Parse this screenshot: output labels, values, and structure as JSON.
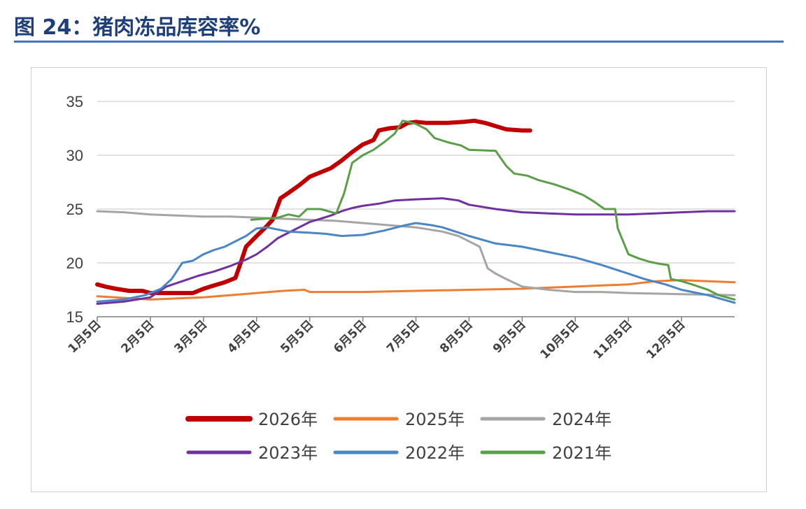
{
  "figure": {
    "title": "图 24：猪肉冻品库容率%"
  },
  "colors": {
    "title": "#1f3f7a",
    "rule": "#4472c4",
    "grid": "#d9d9d9",
    "axis": "#7f7f7f",
    "text": "#404040"
  },
  "chart_data": {
    "type": "line",
    "title": "",
    "xlabel": "",
    "ylabel": "",
    "ylim": [
      15,
      35
    ],
    "yticks": [
      15,
      20,
      25,
      30,
      35
    ],
    "xlim": [
      0,
      12
    ],
    "xticks": [
      {
        "x": 0,
        "label": "1月5日"
      },
      {
        "x": 1,
        "label": "2月5日"
      },
      {
        "x": 2,
        "label": "3月5日"
      },
      {
        "x": 3,
        "label": "4月5日"
      },
      {
        "x": 4,
        "label": "5月5日"
      },
      {
        "x": 5,
        "label": "6月5日"
      },
      {
        "x": 6,
        "label": "7月5日"
      },
      {
        "x": 7,
        "label": "8月5日"
      },
      {
        "x": 8,
        "label": "9月5日"
      },
      {
        "x": 9,
        "label": "10月5日"
      },
      {
        "x": 10,
        "label": "11月5日"
      },
      {
        "x": 11,
        "label": "12月5日"
      }
    ],
    "grid": true,
    "legend": "bottom",
    "series": [
      {
        "name": "2026年",
        "color": "#c00000",
        "width": 6,
        "points": [
          [
            0,
            18.0
          ],
          [
            0.15,
            17.8
          ],
          [
            0.35,
            17.6
          ],
          [
            0.6,
            17.4
          ],
          [
            0.85,
            17.4
          ],
          [
            1.0,
            17.2
          ],
          [
            1.5,
            17.2
          ],
          [
            1.8,
            17.2
          ],
          [
            2.0,
            17.6
          ],
          [
            2.2,
            17.9
          ],
          [
            2.4,
            18.2
          ],
          [
            2.6,
            18.6
          ],
          [
            2.7,
            20.0
          ],
          [
            2.8,
            21.5
          ],
          [
            3.0,
            22.5
          ],
          [
            3.15,
            23.2
          ],
          [
            3.3,
            24.0
          ],
          [
            3.45,
            26.0
          ],
          [
            3.6,
            26.5
          ],
          [
            3.8,
            27.2
          ],
          [
            4.0,
            28.0
          ],
          [
            4.2,
            28.4
          ],
          [
            4.4,
            28.8
          ],
          [
            4.6,
            29.5
          ],
          [
            4.8,
            30.3
          ],
          [
            5.0,
            31.0
          ],
          [
            5.2,
            31.4
          ],
          [
            5.3,
            32.3
          ],
          [
            5.5,
            32.5
          ],
          [
            5.7,
            32.6
          ],
          [
            5.85,
            33.0
          ],
          [
            6.0,
            33.1
          ],
          [
            6.2,
            33.0
          ],
          [
            6.6,
            33.0
          ],
          [
            6.9,
            33.1
          ],
          [
            7.1,
            33.2
          ],
          [
            7.3,
            33.0
          ],
          [
            7.5,
            32.7
          ],
          [
            7.7,
            32.4
          ],
          [
            8.0,
            32.3
          ],
          [
            8.15,
            32.3
          ]
        ]
      },
      {
        "name": "2025年",
        "color": "#ed7d31",
        "width": 3,
        "points": [
          [
            0,
            16.9
          ],
          [
            1.0,
            16.6
          ],
          [
            2.0,
            16.8
          ],
          [
            2.5,
            17.0
          ],
          [
            3.0,
            17.2
          ],
          [
            3.5,
            17.4
          ],
          [
            3.9,
            17.5
          ],
          [
            4.0,
            17.3
          ],
          [
            5.0,
            17.3
          ],
          [
            6.0,
            17.4
          ],
          [
            7.0,
            17.5
          ],
          [
            8.0,
            17.6
          ],
          [
            8.5,
            17.7
          ],
          [
            9.0,
            17.8
          ],
          [
            9.5,
            17.9
          ],
          [
            10.0,
            18.0
          ],
          [
            10.5,
            18.3
          ],
          [
            11.0,
            18.4
          ],
          [
            11.5,
            18.3
          ],
          [
            12.0,
            18.2
          ]
        ]
      },
      {
        "name": "2024年",
        "color": "#a5a5a5",
        "width": 3,
        "points": [
          [
            0,
            24.8
          ],
          [
            0.5,
            24.7
          ],
          [
            1.0,
            24.5
          ],
          [
            1.5,
            24.4
          ],
          [
            2.0,
            24.3
          ],
          [
            2.5,
            24.3
          ],
          [
            3.0,
            24.2
          ],
          [
            3.5,
            24.1
          ],
          [
            4.0,
            24.0
          ],
          [
            4.5,
            23.9
          ],
          [
            5.0,
            23.7
          ],
          [
            5.5,
            23.5
          ],
          [
            6.0,
            23.3
          ],
          [
            6.5,
            22.9
          ],
          [
            6.8,
            22.5
          ],
          [
            7.0,
            22.0
          ],
          [
            7.2,
            21.5
          ],
          [
            7.35,
            19.5
          ],
          [
            7.5,
            19.0
          ],
          [
            7.7,
            18.5
          ],
          [
            8.0,
            17.8
          ],
          [
            8.5,
            17.5
          ],
          [
            9.0,
            17.3
          ],
          [
            9.5,
            17.3
          ],
          [
            10.0,
            17.2
          ],
          [
            11.0,
            17.1
          ],
          [
            12.0,
            17.0
          ]
        ]
      },
      {
        "name": "2023年",
        "color": "#7030a0",
        "width": 3,
        "points": [
          [
            0,
            16.2
          ],
          [
            0.5,
            16.4
          ],
          [
            1.0,
            16.8
          ],
          [
            1.3,
            17.8
          ],
          [
            1.6,
            18.3
          ],
          [
            1.9,
            18.8
          ],
          [
            2.2,
            19.2
          ],
          [
            2.5,
            19.7
          ],
          [
            2.8,
            20.3
          ],
          [
            3.0,
            20.8
          ],
          [
            3.2,
            21.5
          ],
          [
            3.4,
            22.3
          ],
          [
            3.6,
            22.8
          ],
          [
            3.8,
            23.3
          ],
          [
            4.0,
            23.8
          ],
          [
            4.2,
            24.1
          ],
          [
            4.4,
            24.4
          ],
          [
            4.6,
            24.8
          ],
          [
            4.8,
            25.1
          ],
          [
            5.0,
            25.3
          ],
          [
            5.3,
            25.5
          ],
          [
            5.6,
            25.8
          ],
          [
            6.0,
            25.9
          ],
          [
            6.5,
            26.0
          ],
          [
            6.8,
            25.8
          ],
          [
            7.0,
            25.4
          ],
          [
            7.5,
            25.0
          ],
          [
            8.0,
            24.7
          ],
          [
            8.5,
            24.6
          ],
          [
            9.0,
            24.5
          ],
          [
            9.5,
            24.5
          ],
          [
            10.0,
            24.5
          ],
          [
            10.5,
            24.6
          ],
          [
            11.0,
            24.7
          ],
          [
            11.5,
            24.8
          ],
          [
            12.0,
            24.8
          ]
        ]
      },
      {
        "name": "2022年",
        "color": "#4a86c5",
        "width": 3,
        "points": [
          [
            0,
            16.4
          ],
          [
            0.5,
            16.6
          ],
          [
            0.9,
            17.0
          ],
          [
            1.2,
            17.6
          ],
          [
            1.4,
            18.5
          ],
          [
            1.6,
            20.0
          ],
          [
            1.8,
            20.2
          ],
          [
            2.0,
            20.8
          ],
          [
            2.2,
            21.2
          ],
          [
            2.4,
            21.5
          ],
          [
            2.6,
            22.0
          ],
          [
            2.8,
            22.5
          ],
          [
            3.0,
            23.2
          ],
          [
            3.2,
            23.3
          ],
          [
            3.4,
            23.1
          ],
          [
            3.6,
            22.9
          ],
          [
            4.0,
            22.8
          ],
          [
            4.3,
            22.7
          ],
          [
            4.6,
            22.5
          ],
          [
            5.0,
            22.6
          ],
          [
            5.4,
            23.0
          ],
          [
            5.8,
            23.5
          ],
          [
            6.0,
            23.7
          ],
          [
            6.3,
            23.5
          ],
          [
            6.5,
            23.3
          ],
          [
            7.0,
            22.5
          ],
          [
            7.5,
            21.8
          ],
          [
            8.0,
            21.5
          ],
          [
            8.5,
            21.0
          ],
          [
            9.0,
            20.5
          ],
          [
            9.5,
            19.8
          ],
          [
            10.0,
            19.0
          ],
          [
            10.3,
            18.5
          ],
          [
            10.7,
            18.0
          ],
          [
            11.0,
            17.5
          ],
          [
            11.5,
            17.0
          ],
          [
            12.0,
            16.3
          ]
        ]
      },
      {
        "name": "2021年",
        "color": "#5a9f47",
        "width": 3,
        "points": [
          [
            2.9,
            24.0
          ],
          [
            3.4,
            24.2
          ],
          [
            3.6,
            24.5
          ],
          [
            3.8,
            24.3
          ],
          [
            3.95,
            25.0
          ],
          [
            4.2,
            25.0
          ],
          [
            4.5,
            24.6
          ],
          [
            4.65,
            26.5
          ],
          [
            4.8,
            29.3
          ],
          [
            5.0,
            30.0
          ],
          [
            5.2,
            30.5
          ],
          [
            5.4,
            31.2
          ],
          [
            5.6,
            32.0
          ],
          [
            5.75,
            33.2
          ],
          [
            5.85,
            33.1
          ],
          [
            6.0,
            32.9
          ],
          [
            6.2,
            32.4
          ],
          [
            6.35,
            31.6
          ],
          [
            6.6,
            31.2
          ],
          [
            6.85,
            30.9
          ],
          [
            7.0,
            30.5
          ],
          [
            7.5,
            30.4
          ],
          [
            7.7,
            29.0
          ],
          [
            7.85,
            28.3
          ],
          [
            8.1,
            28.1
          ],
          [
            8.3,
            27.7
          ],
          [
            8.6,
            27.3
          ],
          [
            8.9,
            26.8
          ],
          [
            9.15,
            26.3
          ],
          [
            9.35,
            25.7
          ],
          [
            9.55,
            25.0
          ],
          [
            9.75,
            25.0
          ],
          [
            9.8,
            23.2
          ],
          [
            10.0,
            20.8
          ],
          [
            10.2,
            20.4
          ],
          [
            10.4,
            20.1
          ],
          [
            10.6,
            19.9
          ],
          [
            10.75,
            19.8
          ],
          [
            10.8,
            18.5
          ],
          [
            11.0,
            18.3
          ],
          [
            11.2,
            18.0
          ],
          [
            11.5,
            17.5
          ],
          [
            11.7,
            17.0
          ],
          [
            12.0,
            16.6
          ]
        ]
      }
    ]
  }
}
